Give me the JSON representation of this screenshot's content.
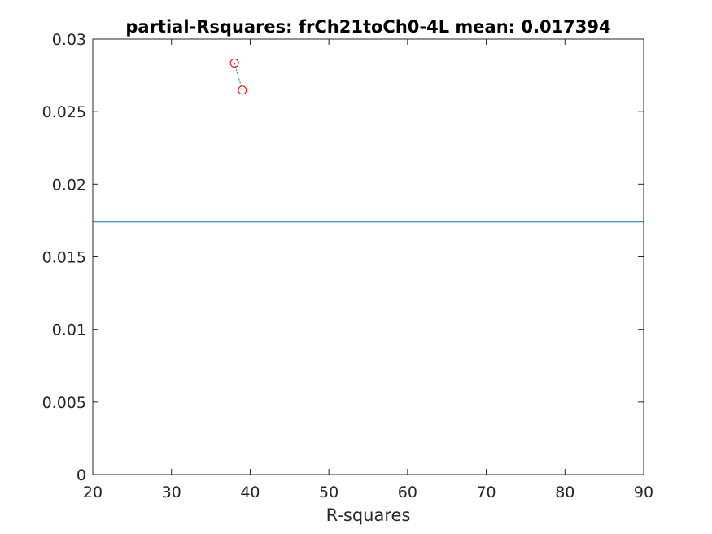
{
  "chart_data": {
    "type": "line",
    "title": "partial-Rsquares: frCh21toCh0-4L mean: 0.017394",
    "xlabel": "R-squares",
    "ylabel": "",
    "xlim": [
      20,
      90
    ],
    "ylim": [
      0,
      0.03
    ],
    "xticks": [
      20,
      30,
      40,
      50,
      60,
      70,
      80,
      90
    ],
    "xtick_labels": [
      "20",
      "30",
      "40",
      "50",
      "60",
      "70",
      "80",
      "90"
    ],
    "yticks": [
      0,
      0.005,
      0.01,
      0.015,
      0.02,
      0.025,
      0.03
    ],
    "ytick_labels": [
      "0",
      "0.005",
      "0.01",
      "0.015",
      "0.02",
      "0.025",
      "0.03"
    ],
    "grid": false,
    "series": [
      {
        "x": [
          38,
          39
        ],
        "y": [
          0.02835,
          0.02648
        ],
        "marker": "circle",
        "line_style": "dotted",
        "line_color": "#0072BD",
        "marker_color": "#FF0000"
      }
    ],
    "mean_line": {
      "y": 0.017394,
      "color": "#0072BD"
    }
  }
}
